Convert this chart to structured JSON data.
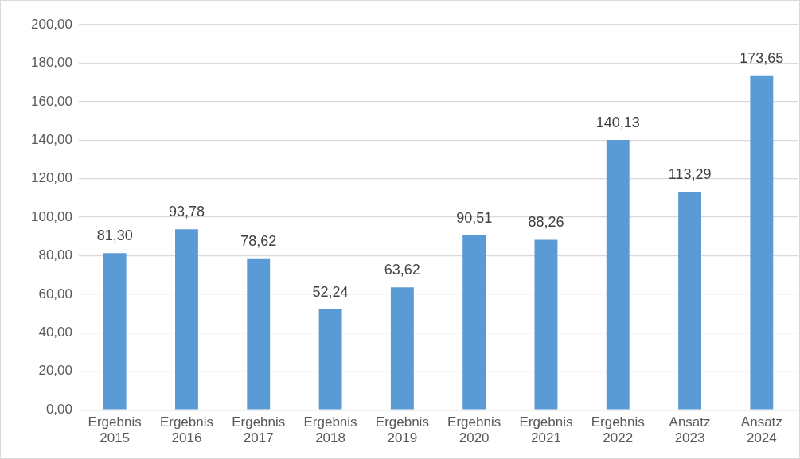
{
  "chart_data": {
    "type": "bar",
    "categories": [
      "Ergebnis 2015",
      "Ergebnis 2016",
      "Ergebnis 2017",
      "Ergebnis 2018",
      "Ergebnis 2019",
      "Ergebnis 2020",
      "Ergebnis 2021",
      "Ergebnis 2022",
      "Ansatz 2023",
      "Ansatz 2024"
    ],
    "values": [
      81.3,
      93.78,
      78.62,
      52.24,
      63.62,
      90.51,
      88.26,
      140.13,
      113.29,
      173.65
    ],
    "value_labels": [
      "81,30",
      "93,78",
      "78,62",
      "52,24",
      "63,62",
      "90,51",
      "88,26",
      "140,13",
      "113,29",
      "173,65"
    ],
    "color": "#5b9bd5",
    "ylim": [
      0,
      200
    ],
    "yticks": [
      {
        "value": 0,
        "label": "0,00"
      },
      {
        "value": 20,
        "label": "20,00"
      },
      {
        "value": 40,
        "label": "40,00"
      },
      {
        "value": 60,
        "label": "60,00"
      },
      {
        "value": 80,
        "label": "80,00"
      },
      {
        "value": 100,
        "label": "100,00"
      },
      {
        "value": 120,
        "label": "120,00"
      },
      {
        "value": 140,
        "label": "140,00"
      },
      {
        "value": 160,
        "label": "160,00"
      },
      {
        "value": 180,
        "label": "180,00"
      },
      {
        "value": 200,
        "label": "200,00"
      }
    ],
    "grid": "y",
    "legend": false
  }
}
